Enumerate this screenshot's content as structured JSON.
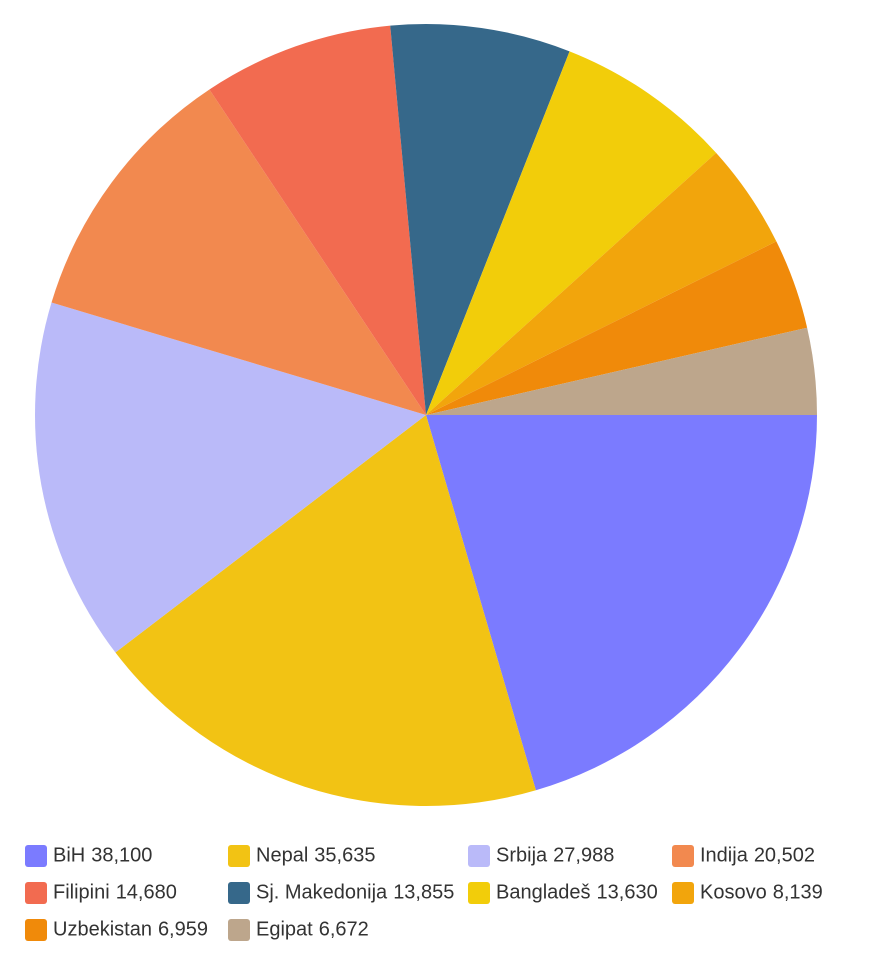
{
  "chart_data": {
    "type": "pie",
    "categories": [
      "BiH",
      "Nepal",
      "Srbija",
      "Indija",
      "Filipini",
      "Sj. Makedonija",
      "Bangladeš",
      "Kosovo",
      "Uzbekistan",
      "Egipat"
    ],
    "values": [
      38100,
      35635,
      27988,
      20502,
      14680,
      13855,
      13630,
      8139,
      6959,
      6672
    ],
    "value_labels": [
      "38,100",
      "35,635",
      "27,988",
      "20,502",
      "14,680",
      "13,855",
      "13,630",
      "8,139",
      "6,959",
      "6,672"
    ],
    "colors": [
      "#7b7bff",
      "#f2c314",
      "#babaf9",
      "#f2894f",
      "#f26b50",
      "#36688a",
      "#f2cd0a",
      "#f2a50c",
      "#f08a0a",
      "#bda68c"
    ],
    "legend": "bottom"
  }
}
